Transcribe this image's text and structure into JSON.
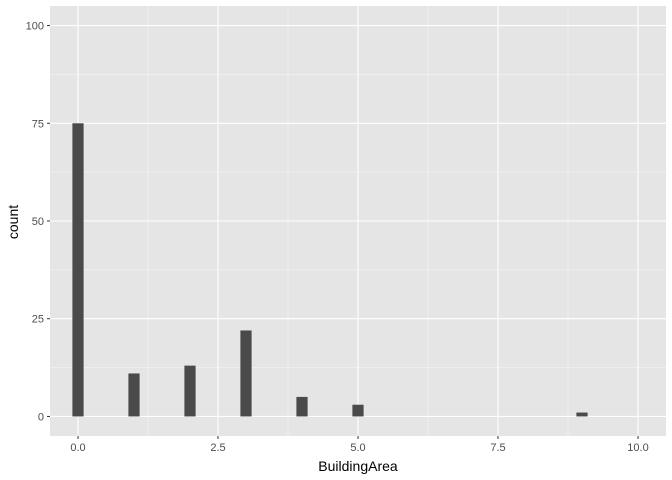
{
  "chart_data": {
    "type": "bar",
    "xlabel": "BuildingArea",
    "ylabel": "count",
    "xlim": [
      -0.5,
      10.5
    ],
    "ylim": [
      -5,
      105
    ],
    "x_ticks": [
      0,
      2.5,
      5,
      7.5,
      10
    ],
    "x_tick_labels": [
      "0.0",
      "2.5",
      "5.0",
      "7.5",
      "10.0"
    ],
    "y_ticks": [
      0,
      25,
      50,
      75,
      100
    ],
    "y_tick_labels": [
      "0",
      "25",
      "50",
      "75",
      "100"
    ],
    "bin_width": 0.2,
    "bins": [
      {
        "x": 0,
        "count": 75
      },
      {
        "x": 1,
        "count": 11
      },
      {
        "x": 2,
        "count": 13
      },
      {
        "x": 3,
        "count": 22
      },
      {
        "x": 4,
        "count": 5
      },
      {
        "x": 5,
        "count": 3
      },
      {
        "x": 9,
        "count": 1
      }
    ],
    "grid": true,
    "colors": {
      "panel": "#e5e5e5",
      "grid_major": "#ffffff",
      "bar": "#4a4a4a"
    }
  }
}
